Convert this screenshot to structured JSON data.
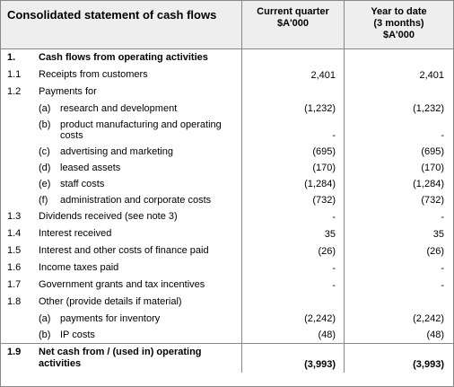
{
  "header": {
    "title": "Consolidated statement of cash flows",
    "current_lines": [
      "Current quarter",
      "$A'000"
    ],
    "ytd_lines": [
      "Year to date",
      "(3 months)",
      "$A'000"
    ]
  },
  "section_heading": {
    "num": "1.",
    "label": "Cash flows from operating activities"
  },
  "rows": [
    {
      "num": "1.1",
      "label": "Receipts from customers",
      "current": "2,401",
      "ytd": "2,401"
    },
    {
      "num": "1.2",
      "label": "Payments for"
    },
    {
      "letter": "(a)",
      "label": "research and development",
      "current": "(1,232)",
      "ytd": "(1,232)"
    },
    {
      "letter": "(b)",
      "label": "product manufacturing and operating costs",
      "current": "-",
      "ytd": "-"
    },
    {
      "letter": "(c)",
      "label": "advertising and marketing",
      "current": "(695)",
      "ytd": "(695)"
    },
    {
      "letter": "(d)",
      "label": "leased assets",
      "current": "(170)",
      "ytd": "(170)"
    },
    {
      "letter": "(e)",
      "label": "staff costs",
      "current": "(1,284)",
      "ytd": "(1,284)"
    },
    {
      "letter": "(f)",
      "label": "administration and corporate costs",
      "current": "(732)",
      "ytd": "(732)"
    },
    {
      "num": "1.3",
      "label": "Dividends received (see note 3)",
      "current": "-",
      "ytd": "-"
    },
    {
      "num": "1.4",
      "label": "Interest received",
      "current": "35",
      "ytd": "35"
    },
    {
      "num": "1.5",
      "label": "Interest and other costs of finance paid",
      "current": "(26)",
      "ytd": "(26)"
    },
    {
      "num": "1.6",
      "label": "Income taxes paid",
      "current": "-",
      "ytd": "-"
    },
    {
      "num": "1.7",
      "label": "Government grants and tax incentives",
      "current": "-",
      "ytd": "-"
    },
    {
      "num": "1.8",
      "label": "Other (provide details if material)"
    },
    {
      "letter": "(a)",
      "label": "payments for inventory",
      "current": "(2,242)",
      "ytd": "(2,242)"
    },
    {
      "letter": "(b)",
      "label": "IP costs",
      "current": "(48)",
      "ytd": "(48)"
    }
  ],
  "total": {
    "num": "1.9",
    "label": "Net cash from / (used in) operating activities",
    "current": "(3,993)",
    "ytd": "(3,993)"
  }
}
